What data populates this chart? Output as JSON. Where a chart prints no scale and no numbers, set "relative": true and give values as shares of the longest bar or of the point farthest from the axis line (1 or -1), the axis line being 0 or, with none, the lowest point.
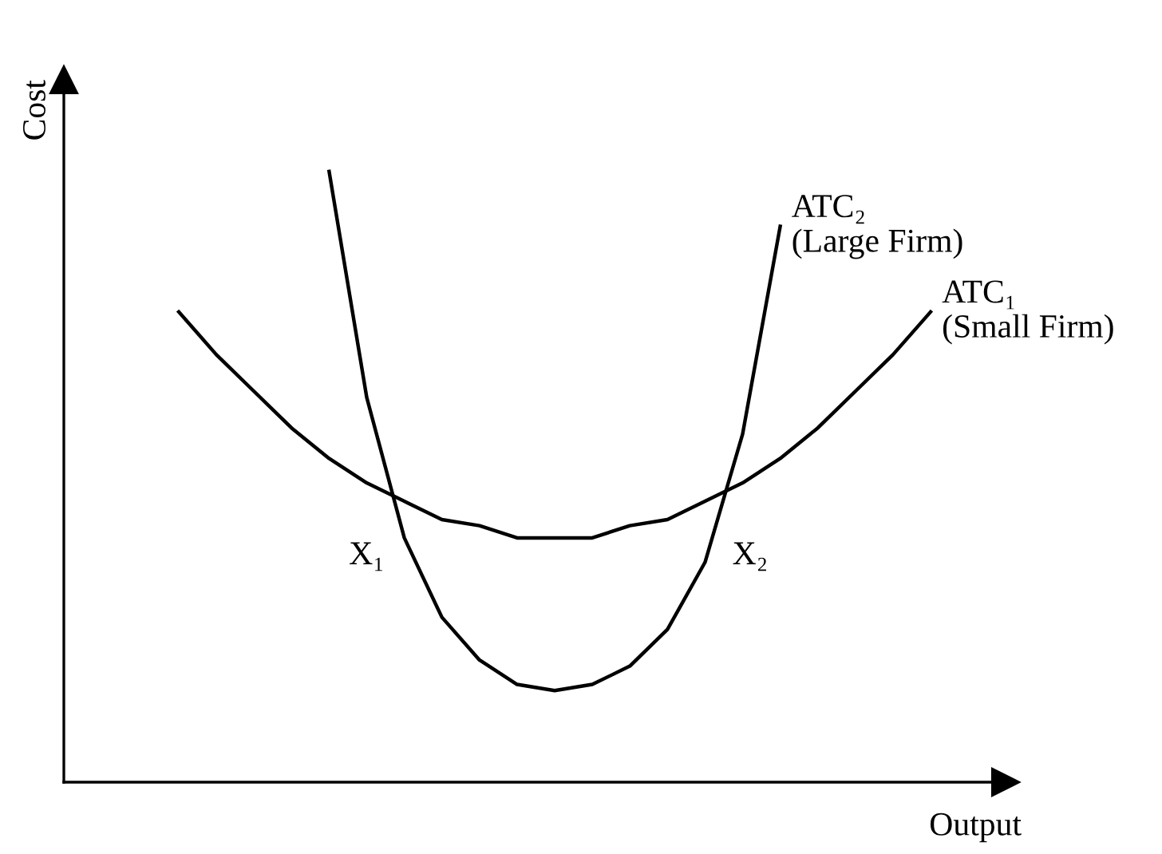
{
  "chart_data": {
    "type": "line",
    "relative": true,
    "xlabel": "Output",
    "ylabel": "Cost",
    "categories": [
      null,
      null,
      null,
      null,
      null,
      null,
      null,
      null,
      null,
      null,
      null,
      null,
      null,
      null,
      null,
      null,
      null,
      null,
      null,
      null,
      null
    ],
    "series": [
      {
        "name": "ATC₂\n(Large Firm)",
        "color": "#000000",
        "values": [
          null,
          null,
          null,
          null,
          1.0,
          0.63,
          0.4,
          0.27,
          0.2,
          0.16,
          0.15,
          0.16,
          0.19,
          0.25,
          0.36,
          0.57,
          0.91,
          null,
          null,
          null,
          null
        ]
      },
      {
        "name": "ATC₁\n(Small Firm)",
        "color": "#000000",
        "values": [
          0.77,
          0.7,
          0.64,
          0.58,
          0.53,
          0.49,
          0.46,
          0.43,
          0.42,
          0.4,
          0.4,
          0.4,
          0.42,
          0.43,
          0.46,
          0.49,
          0.53,
          0.58,
          0.64,
          0.7,
          0.77
        ]
      }
    ],
    "annotations": [
      "X₁",
      "X₂"
    ],
    "marker": "none",
    "line_style": "solid"
  }
}
